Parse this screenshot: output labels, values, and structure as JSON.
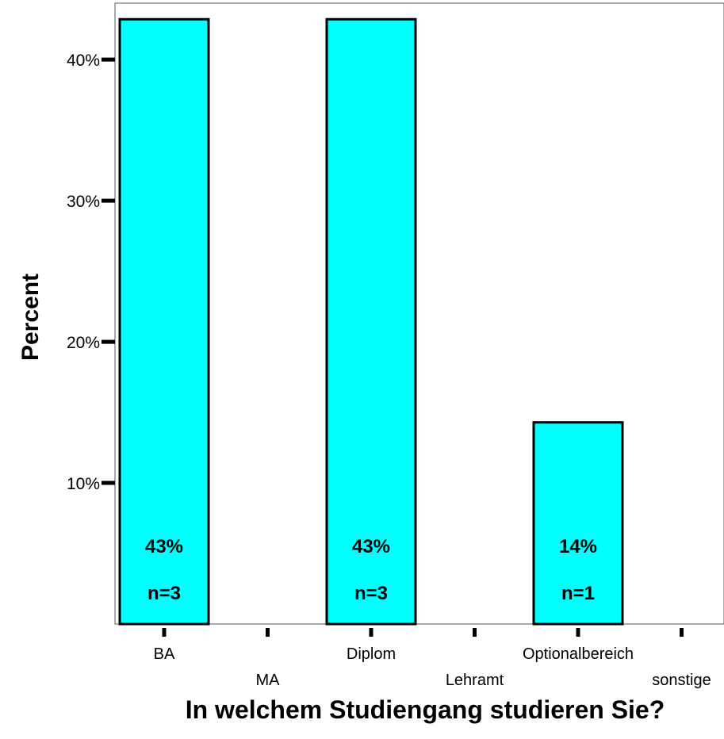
{
  "chart_data": {
    "type": "bar",
    "categories": [
      "BA",
      "MA",
      "Diplom",
      "Lehramt",
      "Optionalbereich",
      "sonstige"
    ],
    "values": [
      42.86,
      0,
      42.86,
      0,
      14.29,
      0
    ],
    "counts": [
      3,
      0,
      3,
      0,
      1,
      0
    ],
    "bar_labels": [
      "43%",
      "",
      "43%",
      "",
      "14%",
      ""
    ],
    "count_labels": [
      "n=3",
      "",
      "n=3",
      "",
      "n=1",
      ""
    ],
    "title": "",
    "xlabel": "In welchem Studiengang studieren Sie?",
    "ylabel": "Percent",
    "ylim": [
      0,
      44
    ],
    "yticks": [
      10,
      20,
      30,
      40
    ],
    "ytick_labels": [
      "10%",
      "20%",
      "30%",
      "40%"
    ],
    "grid": false,
    "bar_color": "#00ffff",
    "bar_edge_color": "#000000"
  }
}
